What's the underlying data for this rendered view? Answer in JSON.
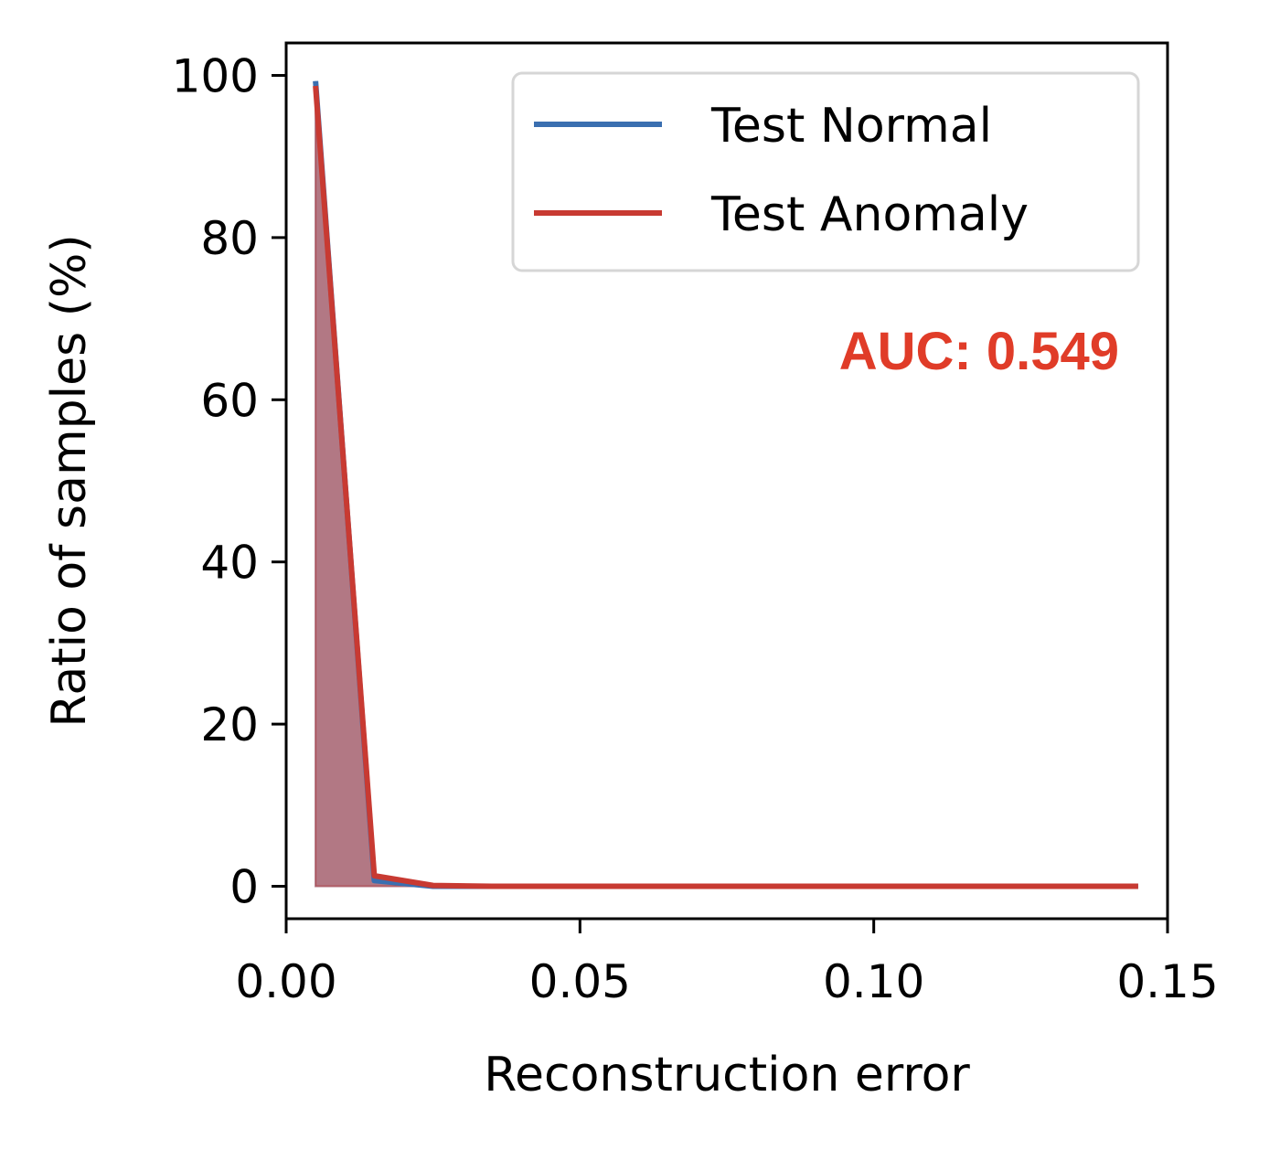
{
  "chart_data": {
    "type": "line",
    "xlabel": "Reconstruction error",
    "ylabel": "Ratio of samples (%)",
    "xlim": [
      0.0,
      0.15
    ],
    "ylim": [
      -4,
      104
    ],
    "x_ticks": [
      0.0,
      0.05,
      0.1,
      0.15
    ],
    "x_tick_labels": [
      "0.00",
      "0.05",
      "0.10",
      "0.15"
    ],
    "y_ticks": [
      0,
      20,
      40,
      60,
      80,
      100
    ],
    "y_tick_labels": [
      "0",
      "20",
      "40",
      "60",
      "80",
      "100"
    ],
    "grid": false,
    "legend_position": "top-right",
    "x": [
      0.005,
      0.015,
      0.025,
      0.035,
      0.045,
      0.055,
      0.065,
      0.075,
      0.085,
      0.095,
      0.105,
      0.115,
      0.125,
      0.135,
      0.145
    ],
    "series": [
      {
        "name": "Test Normal",
        "color": "#3a6fb0",
        "fill": "#3a6fb0",
        "values": [
          99.3,
          0.7,
          0.0,
          0.0,
          0.0,
          0.0,
          0.0,
          0.0,
          0.0,
          0.0,
          0.0,
          0.0,
          0.0,
          0.0,
          0.0
        ]
      },
      {
        "name": "Test Anomaly",
        "color": "#c83a32",
        "fill": "#c83a32",
        "values": [
          98.7,
          1.3,
          0.1,
          0.0,
          0.0,
          0.0,
          0.0,
          0.0,
          0.0,
          0.0,
          0.0,
          0.0,
          0.0,
          0.0,
          0.0
        ]
      }
    ],
    "annotation": {
      "text": "AUC: 0.549",
      "color": "#e03c28"
    }
  }
}
